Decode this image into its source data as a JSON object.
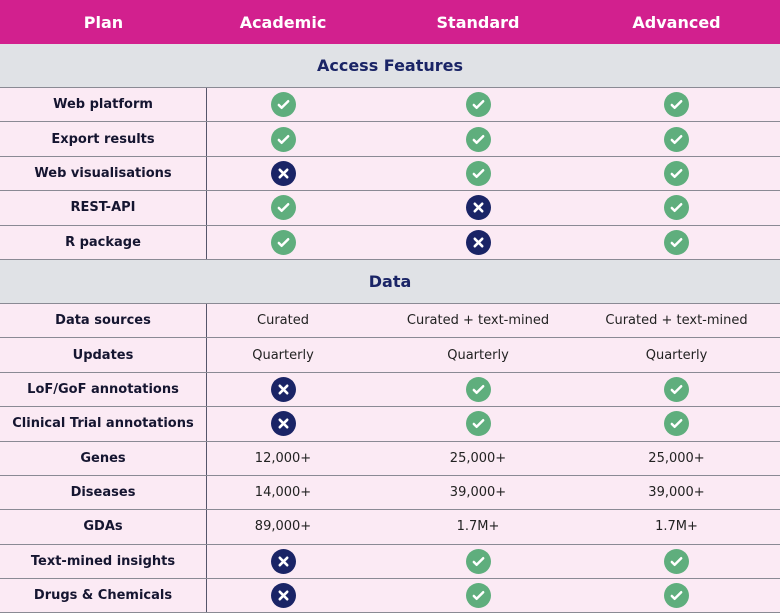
{
  "header": [
    "Plan",
    "Academic",
    "Standard",
    "Advanced"
  ],
  "colors": {
    "header": "#d2208e",
    "section": "#e0e2e6",
    "row": "#fbeaf4",
    "check": "#5fae7d",
    "cross": "#1a2466"
  },
  "sections": [
    {
      "title": "Access Features",
      "rows": [
        {
          "label": "Web platform",
          "cells": [
            "check-icon",
            "check-icon",
            "check-icon"
          ]
        },
        {
          "label": "Export results",
          "cells": [
            "check-icon",
            "check-icon",
            "check-icon"
          ]
        },
        {
          "label": "Web visualisations",
          "cells": [
            "cross-icon",
            "check-icon",
            "check-icon"
          ]
        },
        {
          "label": "REST-API",
          "cells": [
            "check-icon",
            "cross-icon",
            "check-icon"
          ]
        },
        {
          "label": "R package",
          "cells": [
            "check-icon",
            "cross-icon",
            "check-icon"
          ]
        }
      ]
    },
    {
      "title": "Data",
      "rows": [
        {
          "label": "Data sources",
          "cells": [
            "Curated",
            "Curated + text-mined",
            "Curated + text-mined"
          ]
        },
        {
          "label": "Updates",
          "cells": [
            "Quarterly",
            "Quarterly",
            "Quarterly"
          ]
        },
        {
          "label": "LoF/GoF annotations",
          "cells": [
            "cross-icon",
            "check-icon",
            "check-icon"
          ]
        },
        {
          "label": "Clinical Trial annotations",
          "cells": [
            "cross-icon",
            "check-icon",
            "check-icon"
          ]
        },
        {
          "label": "Genes",
          "cells": [
            "12,000+",
            "25,000+",
            "25,000+"
          ]
        },
        {
          "label": "Diseases",
          "cells": [
            "14,000+",
            "39,000+",
            "39,000+"
          ]
        },
        {
          "label": "GDAs",
          "cells": [
            "89,000+",
            "1.7M+",
            "1.7M+"
          ]
        },
        {
          "label": "Text-mined insights",
          "cells": [
            "cross-icon",
            "check-icon",
            "check-icon"
          ]
        },
        {
          "label": "Drugs & Chemicals",
          "cells": [
            "cross-icon",
            "check-icon",
            "check-icon"
          ]
        }
      ]
    }
  ]
}
